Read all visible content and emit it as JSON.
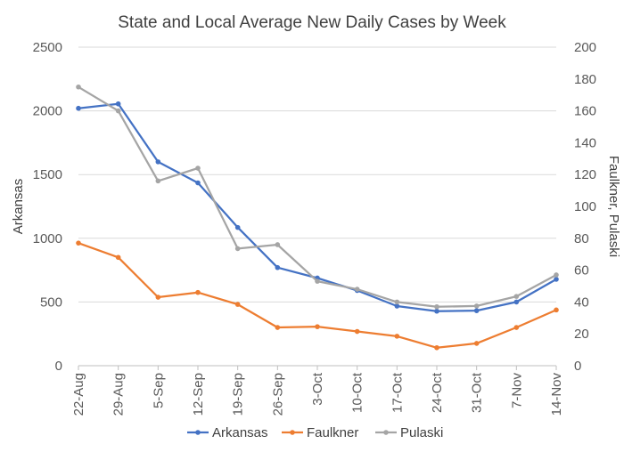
{
  "chart_data": {
    "type": "line",
    "title": "State and Local Average New Daily Cases by Week",
    "categories": [
      "22-Aug",
      "29-Aug",
      "5-Sep",
      "12-Sep",
      "19-Sep",
      "26-Sep",
      "3-Oct",
      "10-Oct",
      "17-Oct",
      "24-Oct",
      "31-Oct",
      "7-Nov",
      "14-Nov"
    ],
    "ylabel_left": "Arkansas",
    "ylabel_right": "Faulkner, Pulaski",
    "ylim_left": [
      0,
      2500
    ],
    "yticks_left": [
      "0",
      "500",
      "1000",
      "1500",
      "2000",
      "2500"
    ],
    "ylim_right": [
      0,
      200
    ],
    "yticks_right": [
      "0",
      "20",
      "40",
      "60",
      "80",
      "100",
      "120",
      "140",
      "160",
      "180",
      "200"
    ],
    "grid": "horizontal",
    "legend_position": "bottom",
    "series": [
      {
        "name": "Arkansas",
        "axis": "left",
        "color": "#4472C4",
        "values": [
          2020,
          2055,
          1600,
          1435,
          1085,
          770,
          688,
          590,
          468,
          428,
          432,
          500,
          678
        ]
      },
      {
        "name": "Faulkner",
        "axis": "right",
        "color": "#ED7D31",
        "values": [
          77,
          68,
          43,
          46,
          38.5,
          24,
          24.5,
          21.5,
          18.5,
          11.3,
          14,
          24,
          35
        ]
      },
      {
        "name": "Pulaski",
        "axis": "right",
        "color": "#A5A5A5",
        "values": [
          175,
          160,
          116,
          124,
          73.5,
          76,
          53,
          48,
          40,
          37,
          37.5,
          43.5,
          57
        ]
      }
    ]
  }
}
